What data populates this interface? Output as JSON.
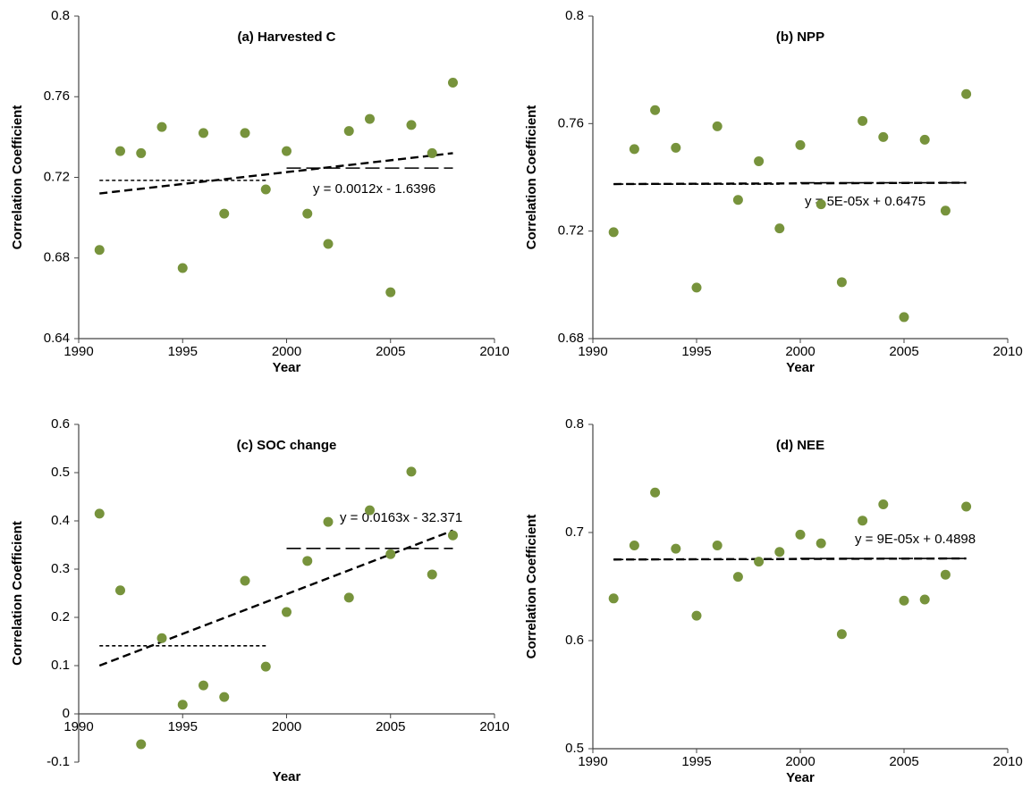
{
  "chart_data": [
    {
      "type": "scatter",
      "title": "(a) Harvested C",
      "xlabel": "Year",
      "ylabel": "Correlation Coefficient",
      "x": [
        1991,
        1992,
        1993,
        1994,
        1995,
        1996,
        1997,
        1998,
        1999,
        2000,
        2001,
        2002,
        2003,
        2004,
        2005,
        2006,
        2007,
        2008
      ],
      "values": [
        0.684,
        0.733,
        0.732,
        0.745,
        0.675,
        0.742,
        0.702,
        0.742,
        0.714,
        0.733,
        0.702,
        0.687,
        0.743,
        0.749,
        0.663,
        0.746,
        0.732,
        0.767
      ],
      "color": "#77933c",
      "xlim": [
        1990,
        2010
      ],
      "xticks": [
        1990,
        1995,
        2000,
        2005,
        2010
      ],
      "ylim": [
        0.64,
        0.8
      ],
      "yticks": [
        0.64,
        0.68,
        0.72,
        0.76,
        0.8
      ],
      "trendline": {
        "x": [
          1991,
          2008
        ],
        "values": [
          0.712,
          0.732
        ],
        "label": "y = 0.0012x - 1.6396"
      },
      "mean_lines": [
        {
          "x": [
            1991,
            1999
          ],
          "value": 0.7185
        },
        {
          "x": [
            2000,
            2008
          ],
          "value": 0.7246
        }
      ]
    },
    {
      "type": "scatter",
      "title": "(b) NPP",
      "xlabel": "Year",
      "ylabel": "Correlation Coefficient",
      "x": [
        1991,
        1992,
        1993,
        1994,
        1995,
        1996,
        1997,
        1998,
        1999,
        2000,
        2001,
        2002,
        2003,
        2004,
        2005,
        2006,
        2007,
        2008
      ],
      "values": [
        0.7196,
        0.7505,
        0.765,
        0.751,
        0.699,
        0.759,
        0.7316,
        0.746,
        0.721,
        0.752,
        0.73,
        0.701,
        0.761,
        0.755,
        0.688,
        0.754,
        0.7276,
        0.771
      ],
      "color": "#77933c",
      "xlim": [
        1990,
        2010
      ],
      "xticks": [
        1990,
        1995,
        2000,
        2005,
        2010
      ],
      "ylim": [
        0.68,
        0.8
      ],
      "yticks": [
        0.68,
        0.72,
        0.76,
        0.8
      ],
      "trendline": {
        "x": [
          1991,
          2008
        ],
        "values": [
          0.7375,
          0.738
        ],
        "label": "y = 5E-05x + 0.6475"
      },
      "mean_lines": [
        {
          "x": [
            1991,
            1999
          ],
          "value": 0.7375
        },
        {
          "x": [
            2000,
            2008
          ],
          "value": 0.738
        }
      ]
    },
    {
      "type": "scatter",
      "title": "(c) SOC change",
      "xlabel": "Year",
      "ylabel": "Correlation Coefficient",
      "x": [
        1991,
        1992,
        1993,
        1994,
        1995,
        1996,
        1997,
        1998,
        1999,
        2000,
        2001,
        2002,
        2003,
        2004,
        2005,
        2006,
        2007,
        2008
      ],
      "values": [
        0.415,
        0.256,
        -0.063,
        0.157,
        0.019,
        0.059,
        0.035,
        0.276,
        0.098,
        0.211,
        0.317,
        0.398,
        0.241,
        0.422,
        0.331,
        0.502,
        0.289,
        0.37
      ],
      "color": "#77933c",
      "xlim": [
        1990,
        2010
      ],
      "xticks": [
        1990,
        1995,
        2000,
        2005,
        2010
      ],
      "ylim": [
        -0.1,
        0.6
      ],
      "yticks": [
        -0.1,
        0,
        0.1,
        0.2,
        0.3,
        0.4,
        0.5,
        0.6
      ],
      "trendline": {
        "x": [
          1991,
          2008
        ],
        "values": [
          0.1,
          0.38
        ],
        "label": "y = 0.0163x - 32.371"
      },
      "mean_lines": [
        {
          "x": [
            1991,
            1999
          ],
          "value": 0.141
        },
        {
          "x": [
            2000,
            2008
          ],
          "value": 0.343
        }
      ]
    },
    {
      "type": "scatter",
      "title": "(d) NEE",
      "xlabel": "Year",
      "ylabel": "Correlation Coefficient",
      "x": [
        1991,
        1992,
        1993,
        1994,
        1995,
        1996,
        1997,
        1998,
        1999,
        2000,
        2001,
        2002,
        2003,
        2004,
        2005,
        2006,
        2007,
        2008
      ],
      "values": [
        0.639,
        0.688,
        0.737,
        0.685,
        0.623,
        0.688,
        0.659,
        0.673,
        0.682,
        0.698,
        0.69,
        0.606,
        0.711,
        0.726,
        0.637,
        0.638,
        0.661,
        0.724
      ],
      "color": "#77933c",
      "xlim": [
        1990,
        2010
      ],
      "xticks": [
        1990,
        1995,
        2000,
        2005,
        2010
      ],
      "ylim": [
        0.5,
        0.8
      ],
      "yticks": [
        0.5,
        0.6,
        0.7,
        0.8
      ],
      "trendline": {
        "x": [
          1991,
          2008
        ],
        "values": [
          0.675,
          0.676
        ],
        "label": "y = 9E-05x + 0.4898"
      },
      "mean_lines": [
        {
          "x": [
            1991,
            1999
          ],
          "value": 0.675
        },
        {
          "x": [
            2000,
            2008
          ],
          "value": 0.676
        }
      ]
    }
  ]
}
